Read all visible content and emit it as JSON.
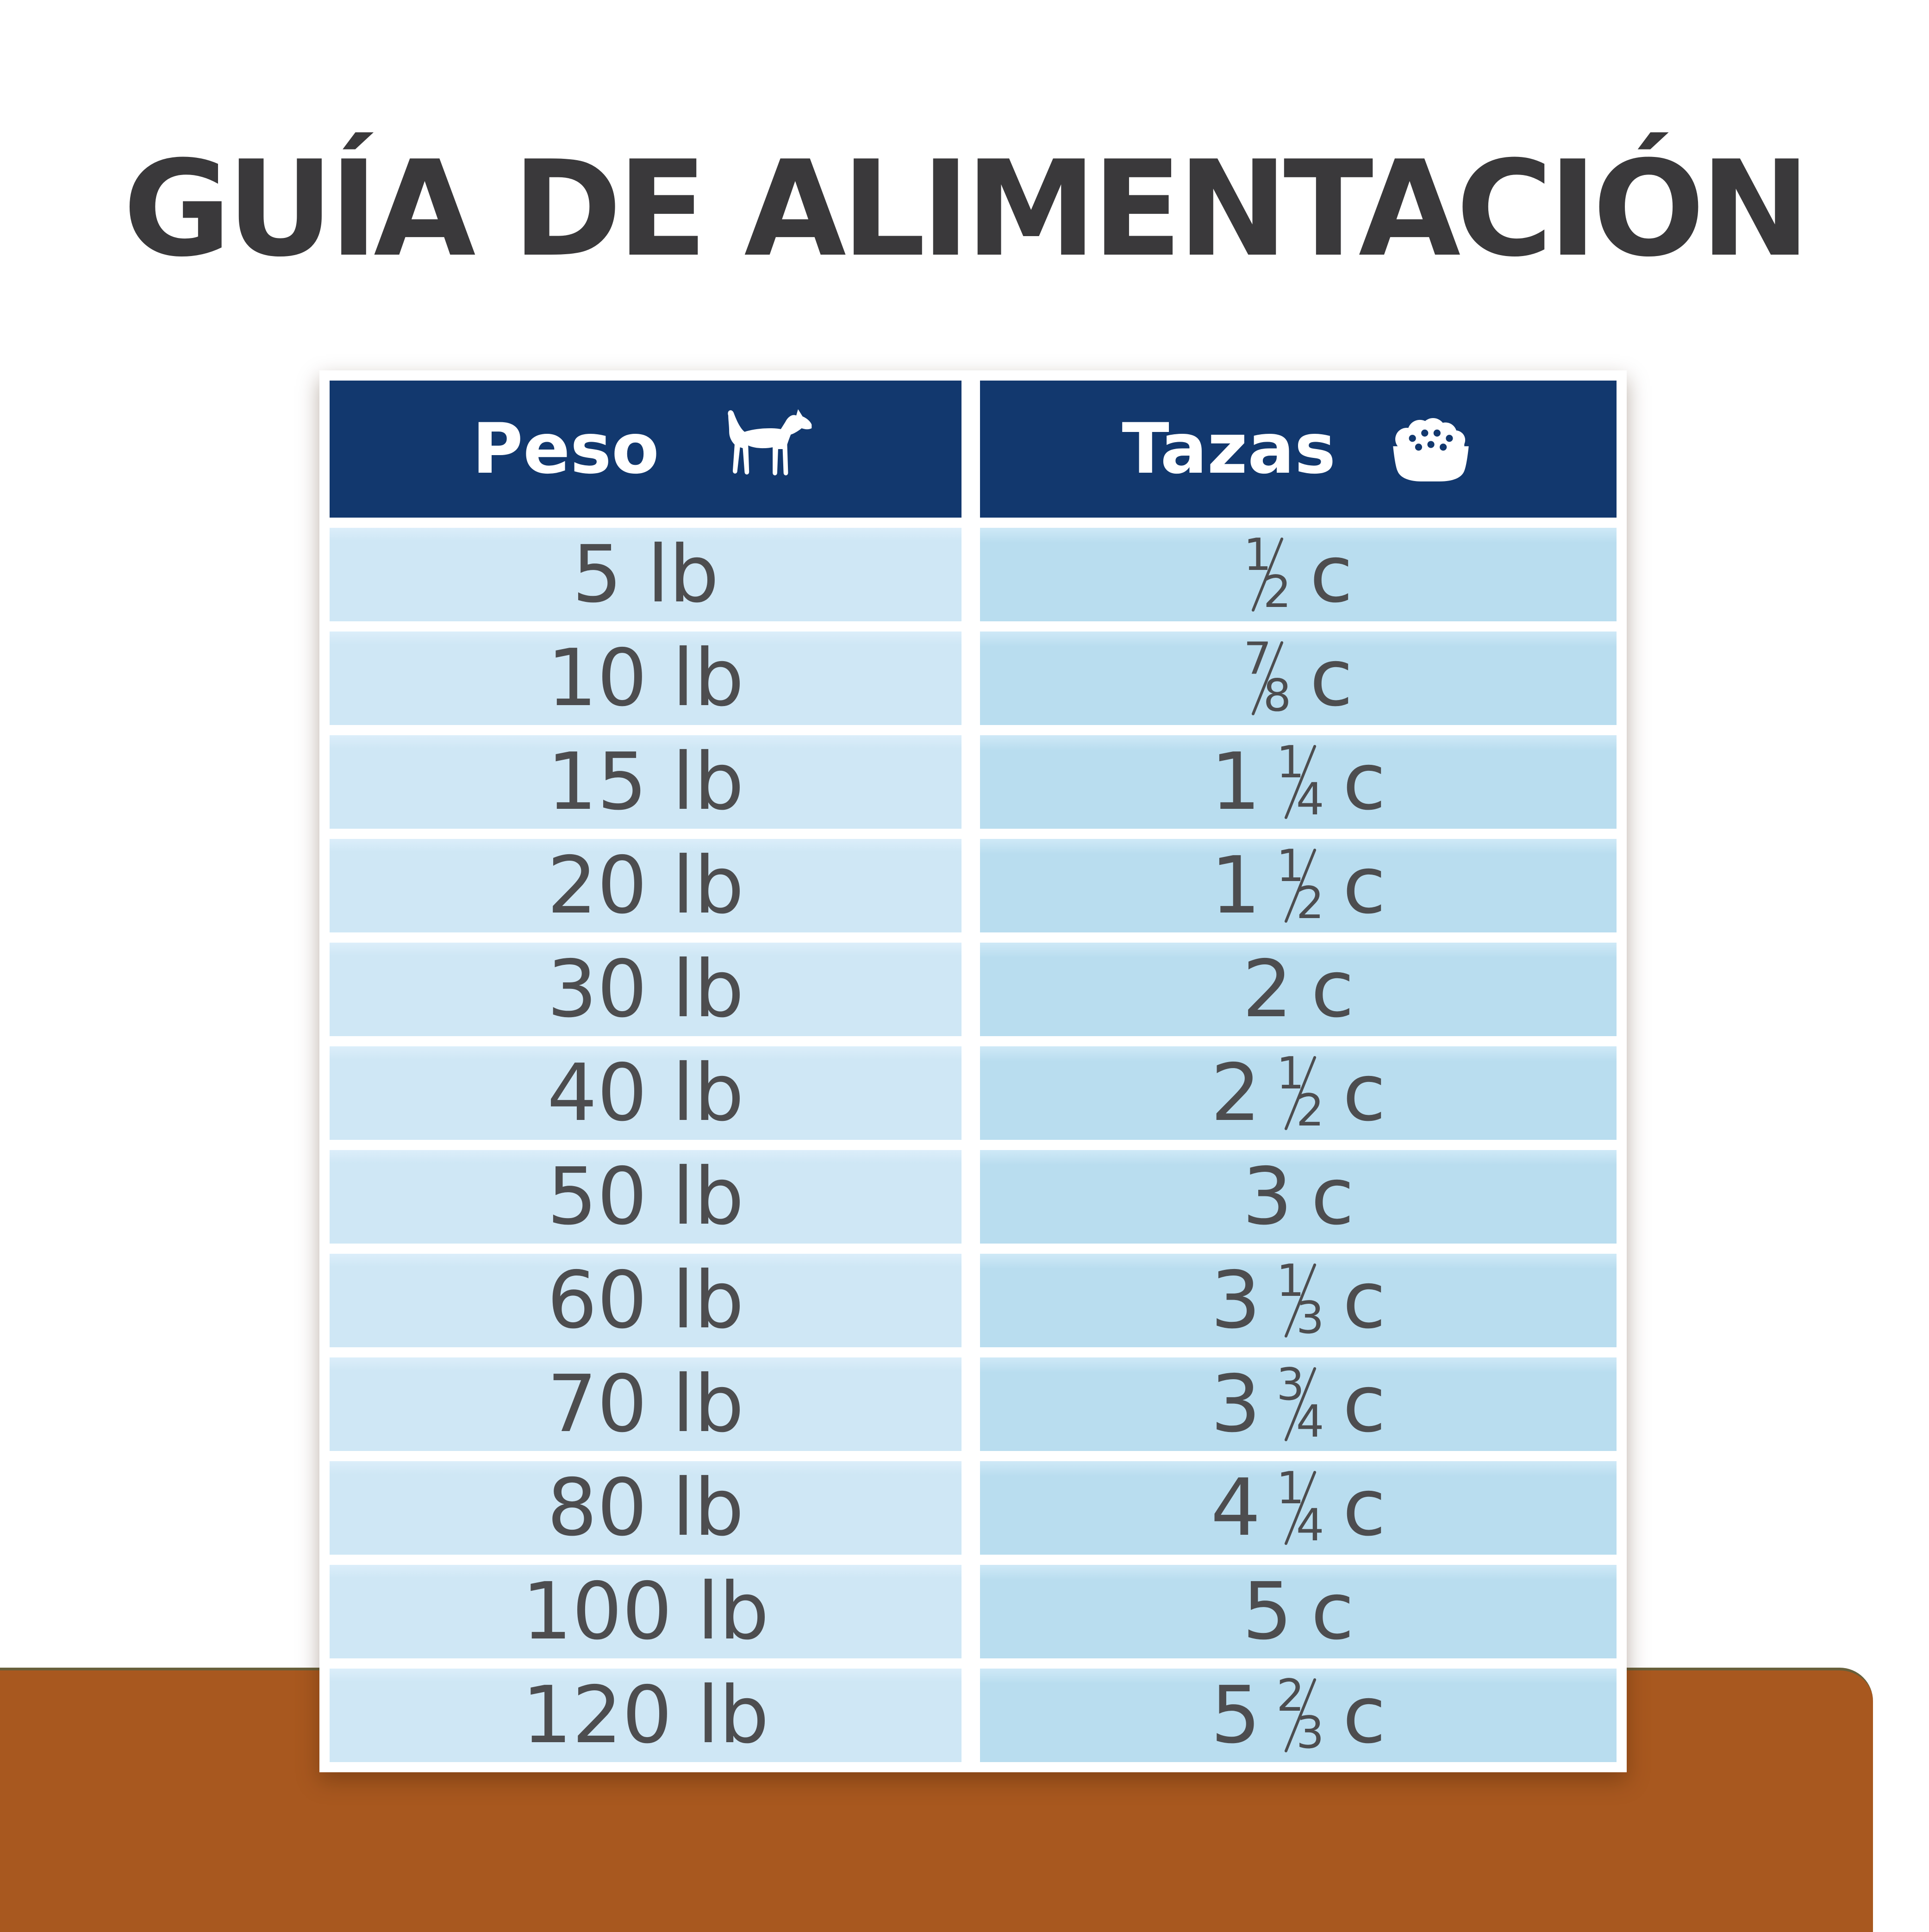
{
  "page": {
    "title": "GUÍA DE ALIMENTACIÓN"
  },
  "chart_data": {
    "type": "table",
    "title": "GUÍA DE ALIMENTACIÓN",
    "columns": [
      "Peso",
      "Tazas"
    ],
    "rows": [
      [
        "5 lb",
        "1/2 c"
      ],
      [
        "10 lb",
        "7/8 c"
      ],
      [
        "15 lb",
        "1 1/4 c"
      ],
      [
        "20 lb",
        "1 1/2 c"
      ],
      [
        "30 lb",
        "2 c"
      ],
      [
        "40 lb",
        "2 1/2 c"
      ],
      [
        "50 lb",
        "3 c"
      ],
      [
        "60 lb",
        "3 1/3 c"
      ],
      [
        "70 lb",
        "3 3/4 c"
      ],
      [
        "80 lb",
        "4 1/4 c"
      ],
      [
        "100 lb",
        "5 c"
      ],
      [
        "120 lb",
        "5 2/3 c"
      ]
    ]
  },
  "table": {
    "columns": [
      {
        "label": "Peso",
        "icon": "dog-icon"
      },
      {
        "label": "Tazas",
        "icon": "food-bowl-icon"
      }
    ],
    "cups_unit": "c",
    "rows": [
      {
        "weight": "5 lb",
        "cups": {
          "num": "1",
          "den": "2"
        }
      },
      {
        "weight": "10 lb",
        "cups": {
          "num": "7",
          "den": "8"
        }
      },
      {
        "weight": "15 lb",
        "cups": {
          "whole": "1",
          "num": "1",
          "den": "4"
        }
      },
      {
        "weight": "20 lb",
        "cups": {
          "whole": "1",
          "num": "1",
          "den": "2"
        }
      },
      {
        "weight": "30 lb",
        "cups": {
          "whole": "2"
        }
      },
      {
        "weight": "40 lb",
        "cups": {
          "whole": "2",
          "num": "1",
          "den": "2"
        }
      },
      {
        "weight": "50 lb",
        "cups": {
          "whole": "3"
        }
      },
      {
        "weight": "60 lb",
        "cups": {
          "whole": "3",
          "num": "1",
          "den": "3"
        }
      },
      {
        "weight": "70 lb",
        "cups": {
          "whole": "3",
          "num": "3",
          "den": "4"
        }
      },
      {
        "weight": "80 lb",
        "cups": {
          "whole": "4",
          "num": "1",
          "den": "4"
        }
      },
      {
        "weight": "100 lb",
        "cups": {
          "whole": "5"
        }
      },
      {
        "weight": "120 lb",
        "cups": {
          "whole": "5",
          "num": "2",
          "den": "3"
        }
      }
    ]
  },
  "colors": {
    "navy": "#12386e",
    "cell_left": "#cfe7f5",
    "cell_right": "#b9ddef",
    "text": "#4d4d4f",
    "title": "#3a393b",
    "brown": "#a8581f",
    "brown_edge": "#68603b"
  }
}
